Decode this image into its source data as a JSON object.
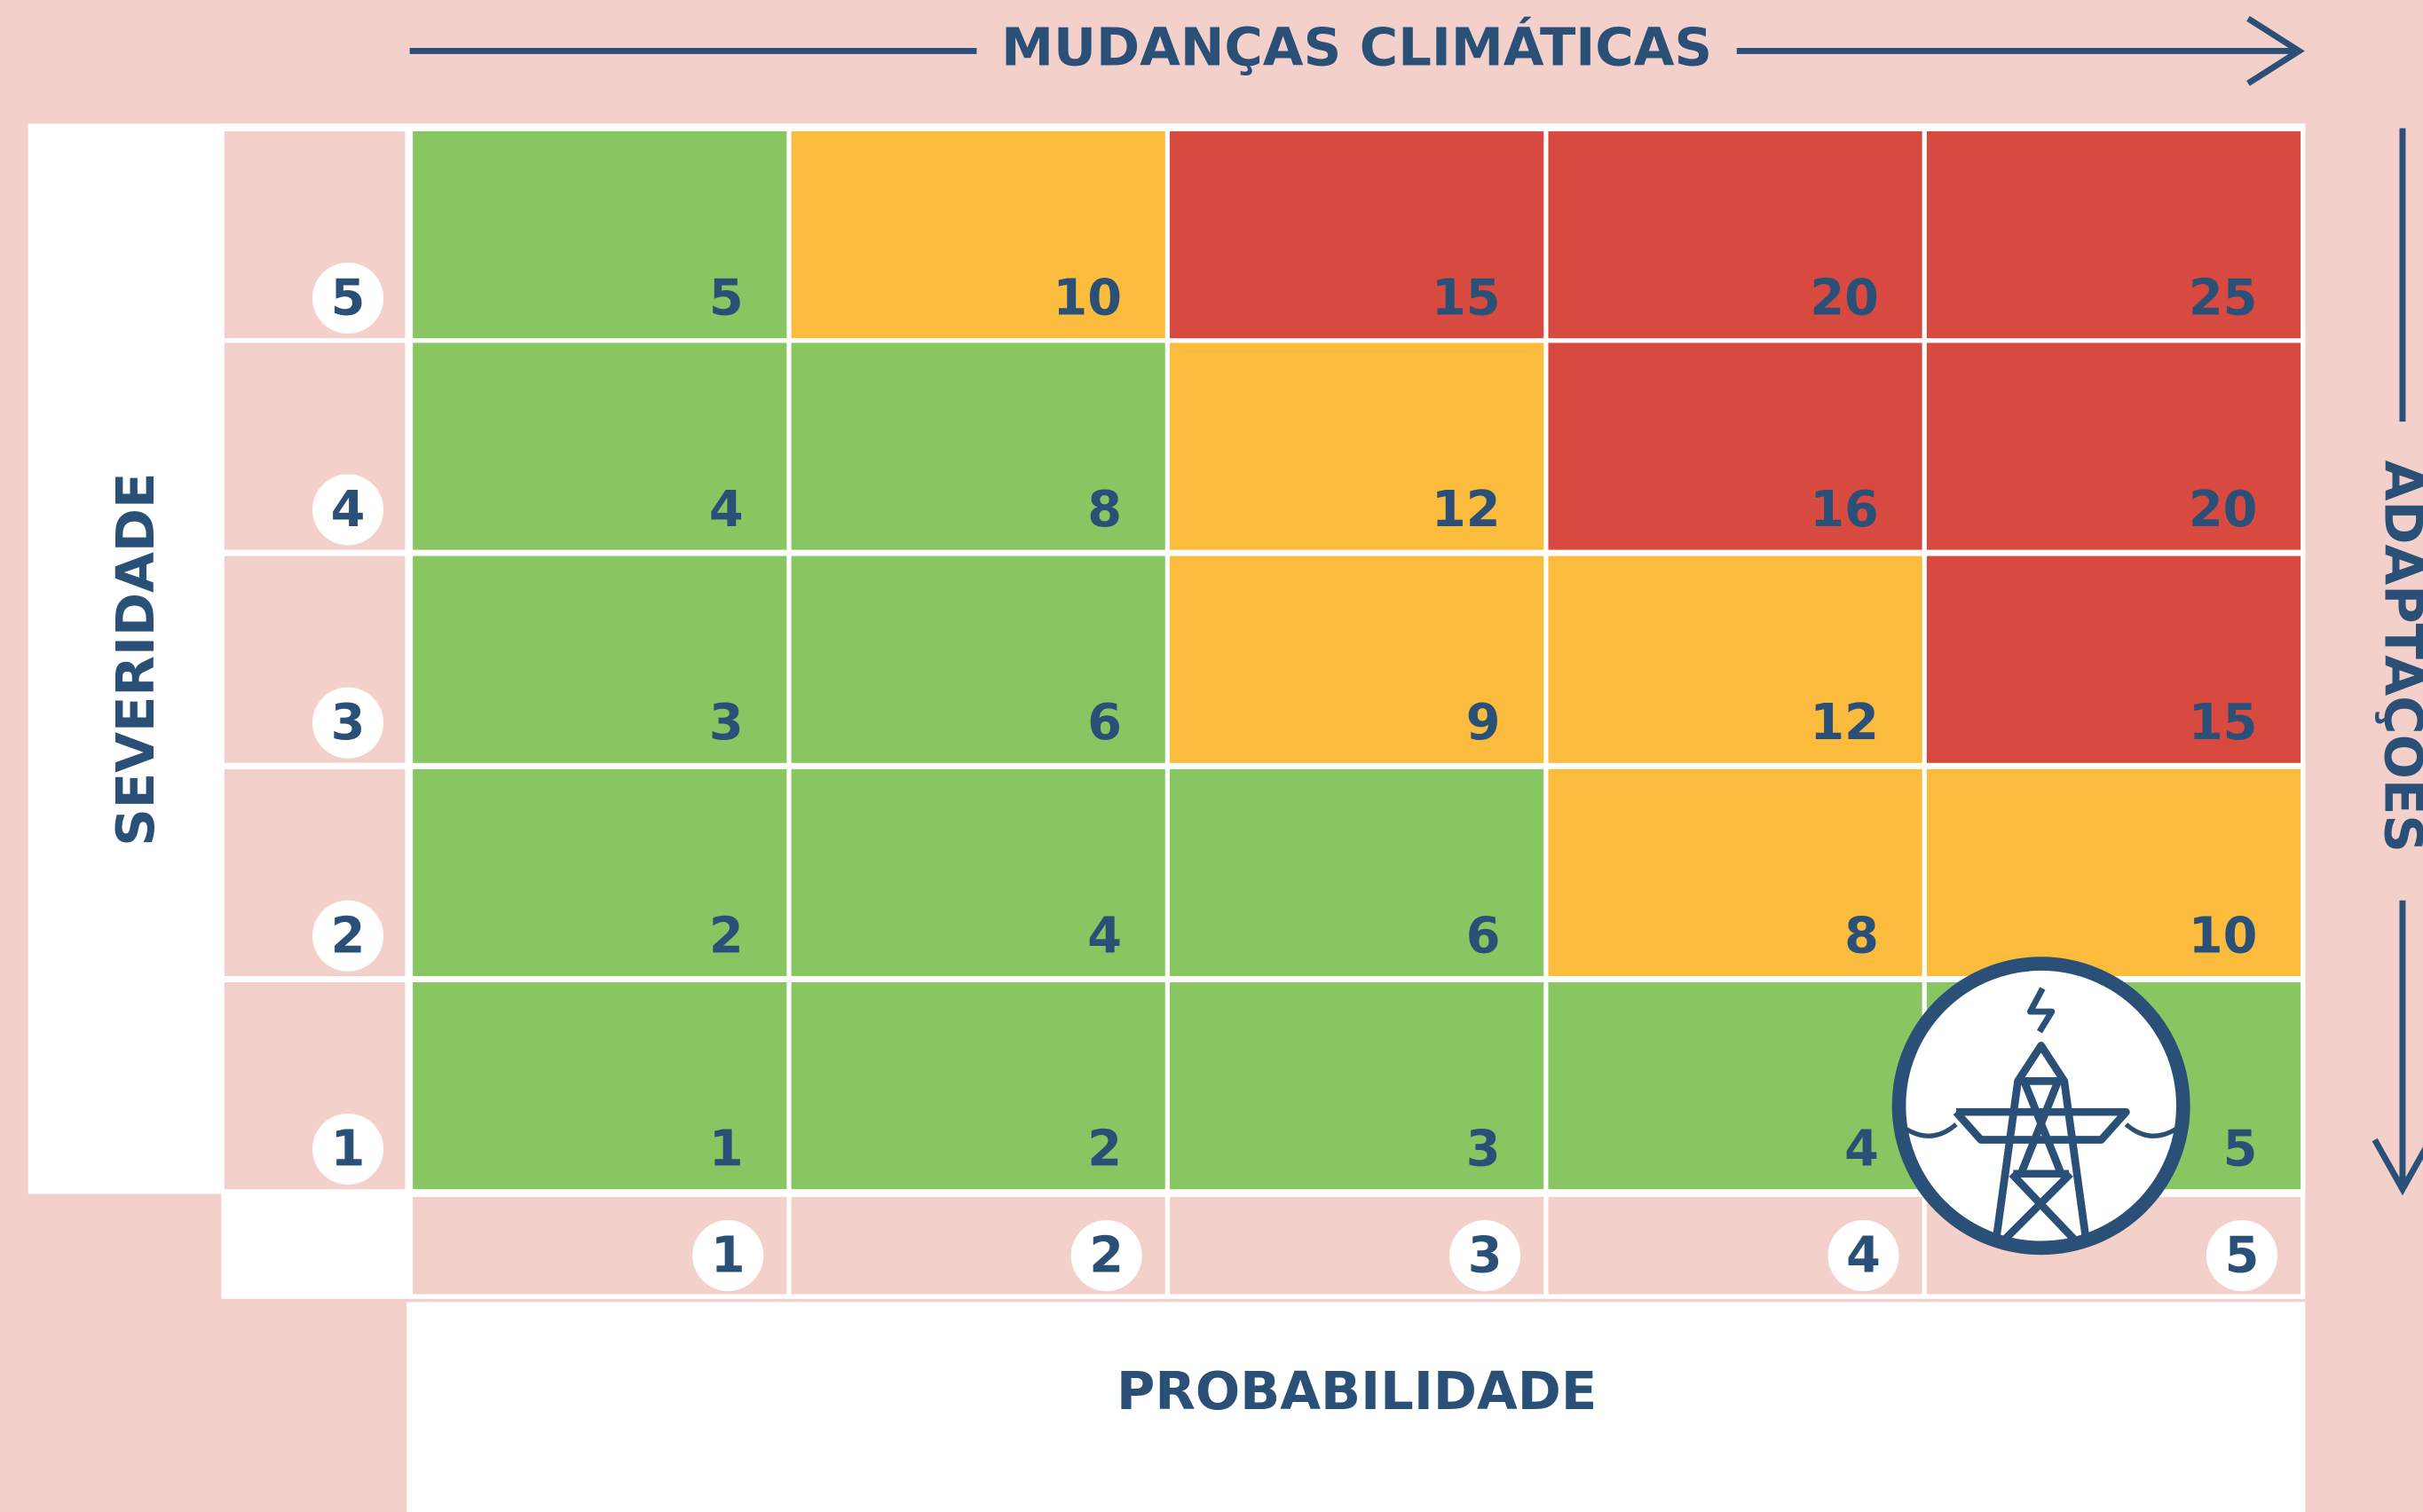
{
  "top_label": "MUDANÇAS CLIMÁTICAS",
  "right_label": "ADAPTAÇÕES",
  "left_label": "SEVERIDADE",
  "bottom_label": "PROBABILIDADE",
  "row_labels": [
    "5",
    "4",
    "3",
    "2",
    "1"
  ],
  "column_labels": [
    "1",
    "2",
    "3",
    "4",
    "5"
  ],
  "cells": [
    [
      {
        "value": "5",
        "color": "#88c662"
      },
      {
        "value": "10",
        "color": "#fbbb3c"
      },
      {
        "value": "15",
        "color": "#d84a40"
      },
      {
        "value": "20",
        "color": "#d84a40"
      },
      {
        "value": "25",
        "color": "#d84a40"
      }
    ],
    [
      {
        "value": "4",
        "color": "#88c662"
      },
      {
        "value": "8",
        "color": "#88c662"
      },
      {
        "value": "12",
        "color": "#fbbb3c"
      },
      {
        "value": "16",
        "color": "#d84a40"
      },
      {
        "value": "20",
        "color": "#d84a40"
      }
    ],
    [
      {
        "value": "3",
        "color": "#88c662"
      },
      {
        "value": "6",
        "color": "#88c662"
      },
      {
        "value": "9",
        "color": "#fbbb3c"
      },
      {
        "value": "12",
        "color": "#fbbb3c"
      },
      {
        "value": "15",
        "color": "#d84a40"
      }
    ],
    [
      {
        "value": "2",
        "color": "#88c662"
      },
      {
        "value": "4",
        "color": "#88c662"
      },
      {
        "value": "6",
        "color": "#88c662"
      },
      {
        "value": "8",
        "color": "#fbbb3c"
      },
      {
        "value": "10",
        "color": "#fbbb3c"
      }
    ],
    [
      {
        "value": "1",
        "color": "#88c662"
      },
      {
        "value": "2",
        "color": "#88c662"
      },
      {
        "value": "3",
        "color": "#88c662"
      },
      {
        "value": "4",
        "color": "#88c662"
      },
      {
        "value": "5",
        "color": "#88c662"
      }
    ]
  ]
}
